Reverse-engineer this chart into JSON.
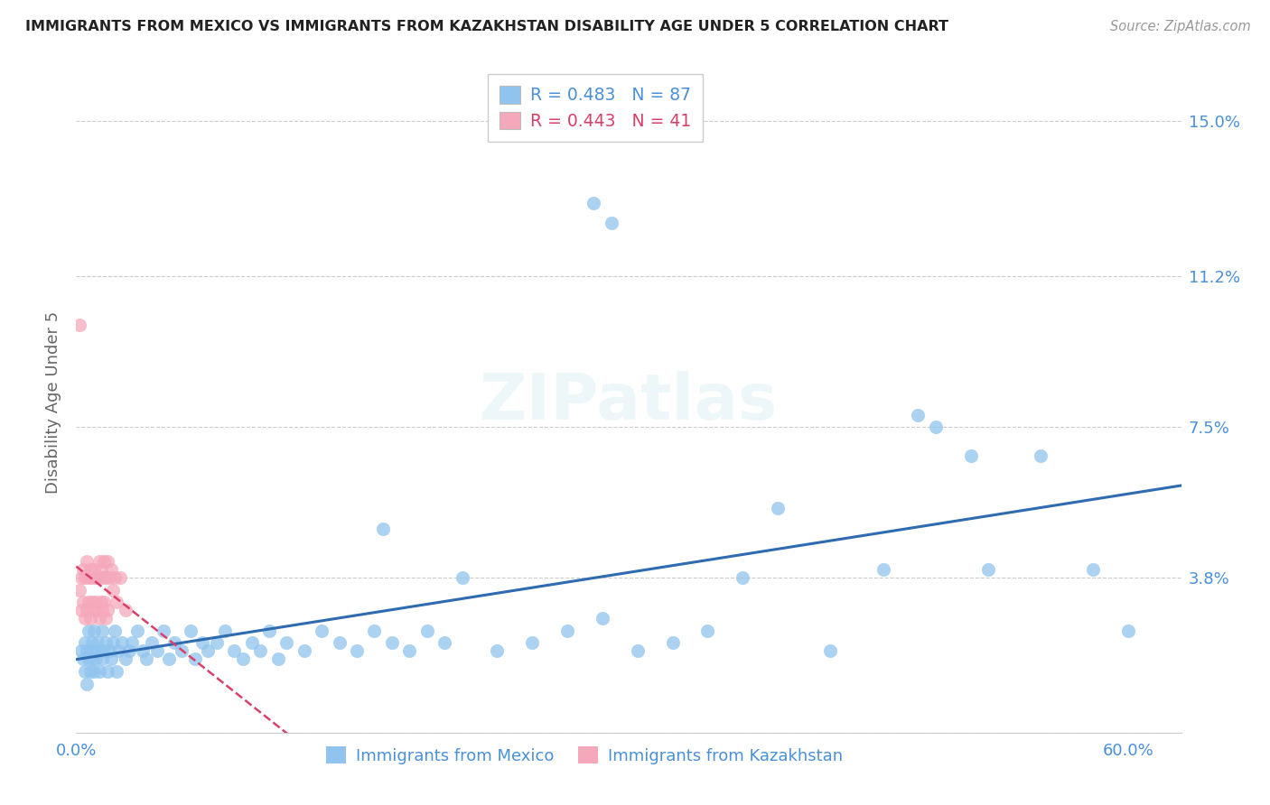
{
  "title": "IMMIGRANTS FROM MEXICO VS IMMIGRANTS FROM KAZAKHSTAN DISABILITY AGE UNDER 5 CORRELATION CHART",
  "source": "Source: ZipAtlas.com",
  "ylabel": "Disability Age Under 5",
  "xlim": [
    0.0,
    0.63
  ],
  "ylim": [
    0.0,
    0.162
  ],
  "ylabel_vals": [
    0.0,
    0.038,
    0.075,
    0.112,
    0.15
  ],
  "ylabel_labels": [
    "",
    "3.8%",
    "7.5%",
    "11.2%",
    "15.0%"
  ],
  "xlabel_vals": [
    0.0,
    0.6
  ],
  "xlabel_labels": [
    "0.0%",
    "60.0%"
  ],
  "legend1_label": "Immigrants from Mexico",
  "legend2_label": "Immigrants from Kazakhstan",
  "legend1_text": "R = 0.483   N = 87",
  "legend2_text": "R = 0.443   N = 41",
  "color_mexico": "#90C4EE",
  "color_kazakhstan": "#F5A8BA",
  "color_mexico_line": "#2E6BB0",
  "color_kazakhstan_line": "#D94068",
  "color_axis_text": "#4A90D9",
  "background_color": "#FFFFFF",
  "watermark_text": "ZIPatlas",
  "mexico_x": [
    0.003,
    0.004,
    0.005,
    0.005,
    0.006,
    0.006,
    0.007,
    0.007,
    0.008,
    0.008,
    0.009,
    0.009,
    0.01,
    0.01,
    0.011,
    0.011,
    0.012,
    0.013,
    0.014,
    0.015,
    0.015,
    0.016,
    0.017,
    0.018,
    0.019,
    0.02,
    0.021,
    0.022,
    0.023,
    0.024,
    0.026,
    0.028,
    0.03,
    0.032,
    0.035,
    0.038,
    0.04,
    0.043,
    0.046,
    0.05,
    0.053,
    0.056,
    0.06,
    0.065,
    0.068,
    0.072,
    0.075,
    0.08,
    0.085,
    0.09,
    0.095,
    0.1,
    0.105,
    0.11,
    0.115,
    0.12,
    0.13,
    0.14,
    0.15,
    0.16,
    0.17,
    0.18,
    0.19,
    0.2,
    0.21,
    0.22,
    0.24,
    0.26,
    0.28,
    0.3,
    0.32,
    0.34,
    0.36,
    0.38,
    0.4,
    0.43,
    0.46,
    0.49,
    0.52,
    0.55,
    0.295,
    0.305,
    0.48,
    0.51,
    0.58,
    0.6,
    0.175
  ],
  "mexico_y": [
    0.02,
    0.018,
    0.022,
    0.015,
    0.02,
    0.012,
    0.018,
    0.025,
    0.015,
    0.02,
    0.018,
    0.022,
    0.015,
    0.025,
    0.02,
    0.018,
    0.022,
    0.015,
    0.02,
    0.025,
    0.018,
    0.02,
    0.022,
    0.015,
    0.02,
    0.018,
    0.022,
    0.025,
    0.015,
    0.02,
    0.022,
    0.018,
    0.02,
    0.022,
    0.025,
    0.02,
    0.018,
    0.022,
    0.02,
    0.025,
    0.018,
    0.022,
    0.02,
    0.025,
    0.018,
    0.022,
    0.02,
    0.022,
    0.025,
    0.02,
    0.018,
    0.022,
    0.02,
    0.025,
    0.018,
    0.022,
    0.02,
    0.025,
    0.022,
    0.02,
    0.025,
    0.022,
    0.02,
    0.025,
    0.022,
    0.038,
    0.02,
    0.022,
    0.025,
    0.028,
    0.02,
    0.022,
    0.025,
    0.038,
    0.055,
    0.02,
    0.04,
    0.075,
    0.04,
    0.068,
    0.13,
    0.125,
    0.078,
    0.068,
    0.04,
    0.025,
    0.05
  ],
  "kazakhstan_x": [
    0.002,
    0.003,
    0.003,
    0.004,
    0.004,
    0.005,
    0.005,
    0.006,
    0.006,
    0.007,
    0.007,
    0.008,
    0.008,
    0.009,
    0.009,
    0.01,
    0.01,
    0.011,
    0.011,
    0.012,
    0.012,
    0.013,
    0.013,
    0.014,
    0.014,
    0.015,
    0.015,
    0.016,
    0.016,
    0.017,
    0.017,
    0.018,
    0.018,
    0.019,
    0.02,
    0.021,
    0.022,
    0.023,
    0.025,
    0.028,
    0.002
  ],
  "kazakhstan_y": [
    0.035,
    0.038,
    0.03,
    0.04,
    0.032,
    0.038,
    0.028,
    0.042,
    0.03,
    0.038,
    0.032,
    0.04,
    0.028,
    0.038,
    0.032,
    0.04,
    0.03,
    0.038,
    0.032,
    0.038,
    0.03,
    0.042,
    0.028,
    0.04,
    0.032,
    0.038,
    0.03,
    0.042,
    0.032,
    0.038,
    0.028,
    0.042,
    0.03,
    0.038,
    0.04,
    0.035,
    0.038,
    0.032,
    0.038,
    0.03,
    0.1
  ]
}
